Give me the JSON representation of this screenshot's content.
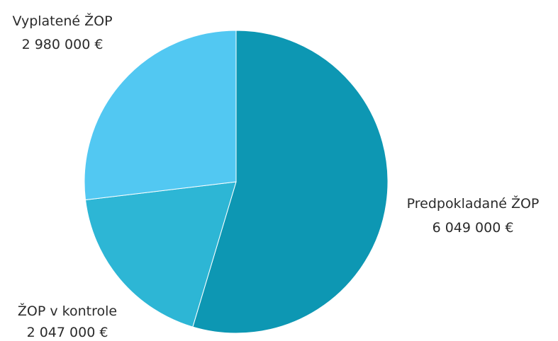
{
  "chart_data": {
    "type": "pie",
    "slices": [
      {
        "label": "Predpokladané ŽOP",
        "value": 6049000,
        "value_label": "6 049 000 €",
        "color": "#0d97b3"
      },
      {
        "label": "ŽOP v kontrole",
        "value": 2047000,
        "value_label": "2 047 000 €",
        "color": "#2db6d5"
      },
      {
        "label": "Vyplatené ŽOP",
        "value": 2980000,
        "value_label": "2 980 000 €",
        "color": "#52c8f2"
      }
    ],
    "start_angle": "12 o'clock",
    "direction": "clockwise",
    "legend": "none"
  }
}
